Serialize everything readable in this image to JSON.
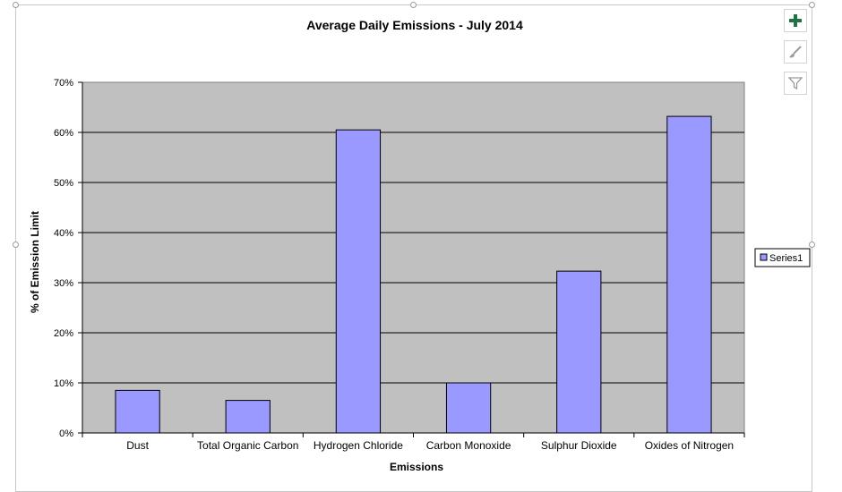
{
  "chart_data": {
    "type": "bar",
    "title": "Average Daily Emissions - July 2014",
    "xlabel": "Emissions",
    "ylabel": "% of Emission Limit",
    "categories": [
      "Dust",
      "Total Organic Carbon",
      "Hydrogen Chloride",
      "Carbon Monoxide",
      "Sulphur Dioxide",
      "Oxides of Nitrogen"
    ],
    "series": [
      {
        "name": "Series1",
        "values": [
          8.5,
          6.5,
          60.5,
          10.0,
          32.3,
          63.2
        ],
        "color": "#9999ff"
      }
    ],
    "ylim": [
      0,
      70
    ],
    "yticks": [
      0,
      10,
      20,
      30,
      40,
      50,
      60,
      70
    ],
    "ytick_labels": [
      "0%",
      "10%",
      "20%",
      "30%",
      "40%",
      "50%",
      "60%",
      "70%"
    ],
    "grid": true,
    "plot_background": "#c0c0c0",
    "legend_position": "right"
  },
  "toolbar": {
    "add_icon": "plus-icon",
    "style_icon": "brush-icon",
    "filter_icon": "filter-icon",
    "accent_color": "#217346"
  }
}
